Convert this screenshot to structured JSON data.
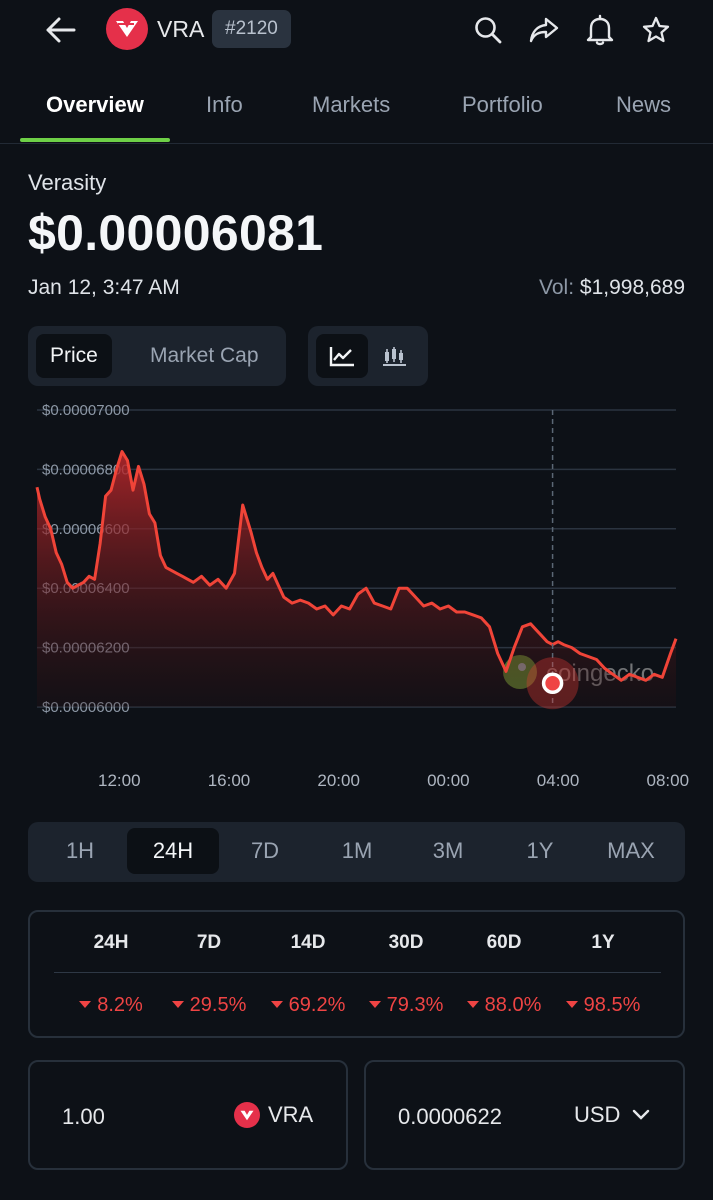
{
  "header": {
    "symbol": "VRA",
    "rank": "#2120",
    "icons": [
      "back-arrow-icon",
      "search-icon",
      "share-icon",
      "bell-icon",
      "star-icon"
    ],
    "logo_color": "#e5304a"
  },
  "tabs": [
    {
      "label": "Overview",
      "active": true
    },
    {
      "label": "Info"
    },
    {
      "label": "Markets"
    },
    {
      "label": "Portfolio"
    },
    {
      "label": "News"
    }
  ],
  "coin": {
    "name": "Verasity",
    "price": "$0.00006081",
    "timestamp": "Jan 12, 3:47 AM",
    "volume_label": "Vol:",
    "volume_value": "$1,998,689"
  },
  "toggles": {
    "price": "Price",
    "market_cap": "Market Cap",
    "selected": "Price",
    "chart_styles": [
      "line-chart-icon",
      "candlestick-icon"
    ]
  },
  "chart_data": {
    "type": "area",
    "y_ticks": [
      "$0.00007000",
      "$0.00006800",
      "$0.00006600",
      "$0.00006400",
      "$0.00006200",
      "$0.00006000"
    ],
    "x_ticks": [
      "12:00",
      "16:00",
      "20:00",
      "00:00",
      "04:00",
      "08:00"
    ],
    "watermark": "coingecko",
    "ylim": [
      6e-05,
      7e-05
    ],
    "line_color": "#f04438",
    "series": [
      {
        "x": [
          9.0,
          9.1,
          9.3,
          9.5,
          9.7,
          9.9,
          10.1,
          10.3,
          10.5,
          10.7,
          10.9,
          11.1,
          11.3,
          11.5,
          11.7,
          11.9,
          12.1,
          12.3,
          12.5,
          12.7,
          12.9,
          13.1,
          13.3,
          13.5,
          13.7,
          13.9,
          14.1,
          14.3,
          14.5,
          14.7,
          15.0,
          15.3,
          15.6,
          15.9,
          16.2,
          16.5,
          16.8,
          17.0,
          17.2,
          17.4,
          17.6,
          17.8,
          18.0,
          18.3,
          18.6,
          18.9,
          19.2,
          19.5,
          19.8,
          20.1,
          20.4,
          20.7,
          21.0,
          21.3,
          21.6,
          21.9,
          22.2,
          22.5,
          22.8,
          23.1,
          23.4,
          23.7,
          24.0,
          24.3,
          24.6,
          24.9,
          25.2,
          25.5,
          25.8,
          26.1,
          26.4,
          26.7,
          27.0,
          27.2,
          27.4,
          27.6,
          27.8,
          28.0,
          28.2,
          28.5,
          28.8,
          29.1,
          29.4,
          29.7,
          30.0,
          30.3,
          30.6,
          30.9,
          31.2,
          31.5,
          31.8,
          32.1,
          32.3
        ],
        "y": [
          6.74e-05,
          6.7e-05,
          6.64e-05,
          6.6e-05,
          6.52e-05,
          6.48e-05,
          6.42e-05,
          6.4e-05,
          6.41e-05,
          6.42e-05,
          6.44e-05,
          6.43e-05,
          6.55e-05,
          6.71e-05,
          6.73e-05,
          6.8e-05,
          6.86e-05,
          6.83e-05,
          6.73e-05,
          6.81e-05,
          6.75e-05,
          6.65e-05,
          6.62e-05,
          6.51e-05,
          6.47e-05,
          6.46e-05,
          6.45e-05,
          6.44e-05,
          6.43e-05,
          6.42e-05,
          6.44e-05,
          6.41e-05,
          6.43e-05,
          6.4e-05,
          6.45e-05,
          6.68e-05,
          6.59e-05,
          6.52e-05,
          6.47e-05,
          6.43e-05,
          6.45e-05,
          6.41e-05,
          6.37e-05,
          6.35e-05,
          6.36e-05,
          6.35e-05,
          6.33e-05,
          6.34e-05,
          6.31e-05,
          6.34e-05,
          6.33e-05,
          6.38e-05,
          6.4e-05,
          6.35e-05,
          6.34e-05,
          6.33e-05,
          6.4e-05,
          6.4e-05,
          6.37e-05,
          6.34e-05,
          6.35e-05,
          6.33e-05,
          6.34e-05,
          6.32e-05,
          6.32e-05,
          6.31e-05,
          6.3e-05,
          6.27e-05,
          6.18e-05,
          6.12e-05,
          6.2e-05,
          6.27e-05,
          6.28e-05,
          6.26e-05,
          6.24e-05,
          6.22e-05,
          6.21e-05,
          6.22e-05,
          6.21e-05,
          6.2e-05,
          6.18e-05,
          6.17e-05,
          6.16e-05,
          6.13e-05,
          6.11e-05,
          6.09e-05,
          6.11e-05,
          6.1e-05,
          6.09e-05,
          6.11e-05,
          6.1e-05,
          6.18e-05,
          6.23e-05
        ]
      }
    ],
    "marker": {
      "x": 27.8,
      "y": 6.08e-05
    }
  },
  "ranges": [
    {
      "label": "1H"
    },
    {
      "label": "24H",
      "active": true
    },
    {
      "label": "7D"
    },
    {
      "label": "1M"
    },
    {
      "label": "3M"
    },
    {
      "label": "1Y"
    },
    {
      "label": "MAX"
    }
  ],
  "performance": {
    "headers": [
      "24H",
      "7D",
      "14D",
      "30D",
      "60D",
      "1Y"
    ],
    "values": [
      "8.2%",
      "29.5%",
      "69.2%",
      "79.3%",
      "88.0%",
      "98.5%"
    ],
    "color": "#ef4444"
  },
  "converter": {
    "left_value": "1.00",
    "left_coin": "VRA",
    "right_value": "0.0000622",
    "right_currency": "USD"
  }
}
